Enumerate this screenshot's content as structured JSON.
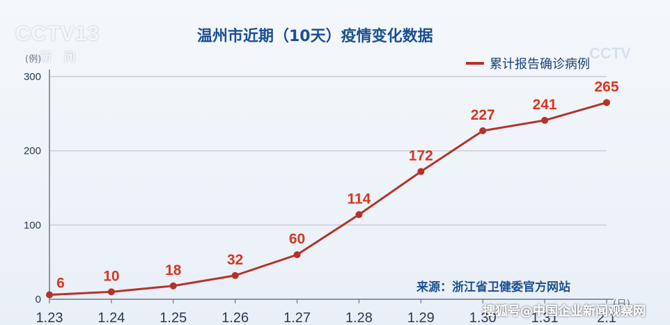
{
  "overlay": {
    "logo_main": "CCTV13",
    "logo_sub": "新闻",
    "logo_right": "CCTV",
    "watermark": "搜狐号@中国企业新闻观察网"
  },
  "chart_data": {
    "type": "line",
    "title": "温州市近期（10天）疫情变化数据",
    "y_unit": "(例)",
    "x_unit": "(日)",
    "categories": [
      "1.23",
      "1.24",
      "1.25",
      "1.26",
      "1.27",
      "1.28",
      "1.29",
      "1.30",
      "1.31",
      "2.1"
    ],
    "series": [
      {
        "name": "累计报告确诊病例",
        "values": [
          6,
          10,
          18,
          32,
          60,
          114,
          172,
          227,
          241,
          265
        ],
        "color": "#b5322a"
      }
    ],
    "data_label_color": "#d7361f",
    "ylim": [
      0,
      300
    ],
    "yticks": [
      0,
      100,
      200,
      300
    ],
    "grid": true,
    "legend_position": "top-right",
    "source": "来源：浙江省卫健委官方网站"
  }
}
